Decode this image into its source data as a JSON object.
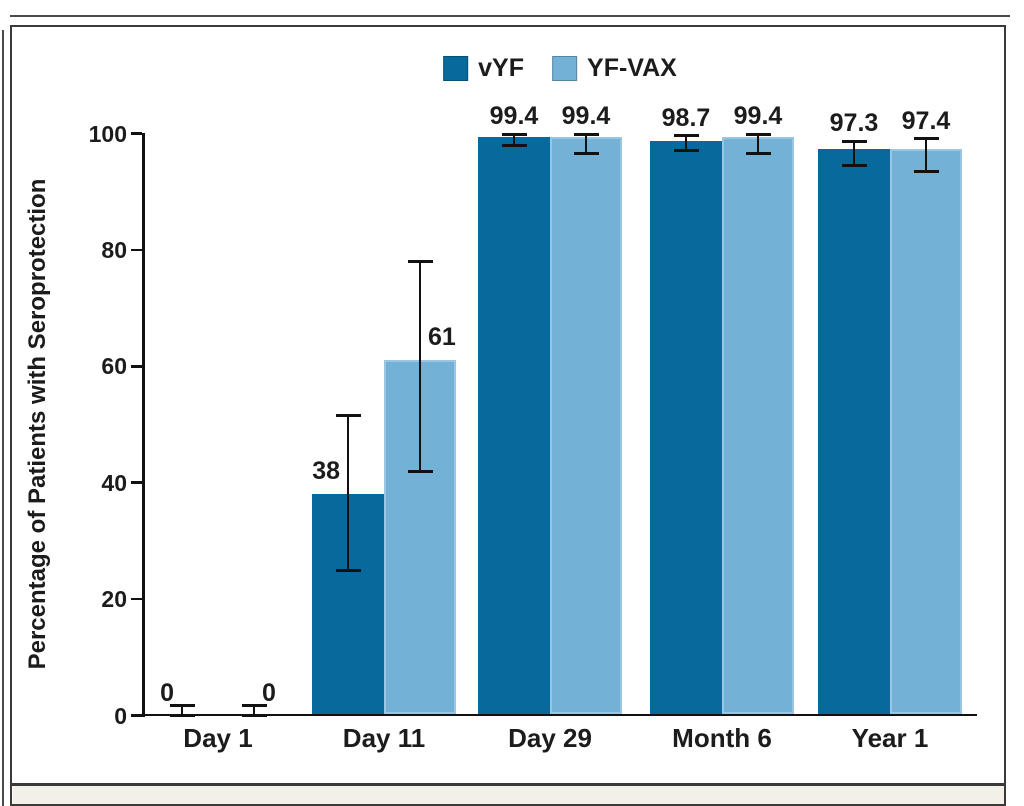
{
  "figure": {
    "caption_text": ""
  },
  "chart_data": {
    "type": "bar",
    "title": "",
    "xlabel": "",
    "ylabel": "Percentage of Patients with Seroprotection",
    "ylim": [
      0,
      100
    ],
    "yticks": [
      0,
      20,
      40,
      60,
      80,
      100
    ],
    "grid": false,
    "legend_position": "top",
    "categories": [
      "Day 1",
      "Day 11",
      "Day 29",
      "Month 6",
      "Year 1"
    ],
    "series": [
      {
        "name": "vYF",
        "color": "#086a9c",
        "values": [
          0,
          38,
          99.4,
          98.7,
          97.3
        ],
        "value_labels": [
          "0",
          "38",
          "99.4",
          "98.7",
          "97.3"
        ],
        "err_lo": [
          0,
          25,
          98.0,
          97.0,
          94.5
        ],
        "err_hi": [
          1.8,
          51.5,
          99.9,
          99.6,
          98.7
        ],
        "label_placement": [
          "left",
          "left",
          "above",
          "above",
          "above"
        ]
      },
      {
        "name": "YF-VAX",
        "color": "#74b1d6",
        "values": [
          0,
          61,
          99.4,
          99.4,
          97.4
        ],
        "value_labels": [
          "0",
          "61",
          "99.4",
          "99.4",
          "97.4"
        ],
        "err_lo": [
          0,
          42,
          96.5,
          96.5,
          93.4
        ],
        "err_hi": [
          1.8,
          78,
          99.9,
          99.9,
          99.1
        ],
        "label_placement": [
          "right",
          "right",
          "above",
          "above",
          "above"
        ]
      }
    ]
  }
}
